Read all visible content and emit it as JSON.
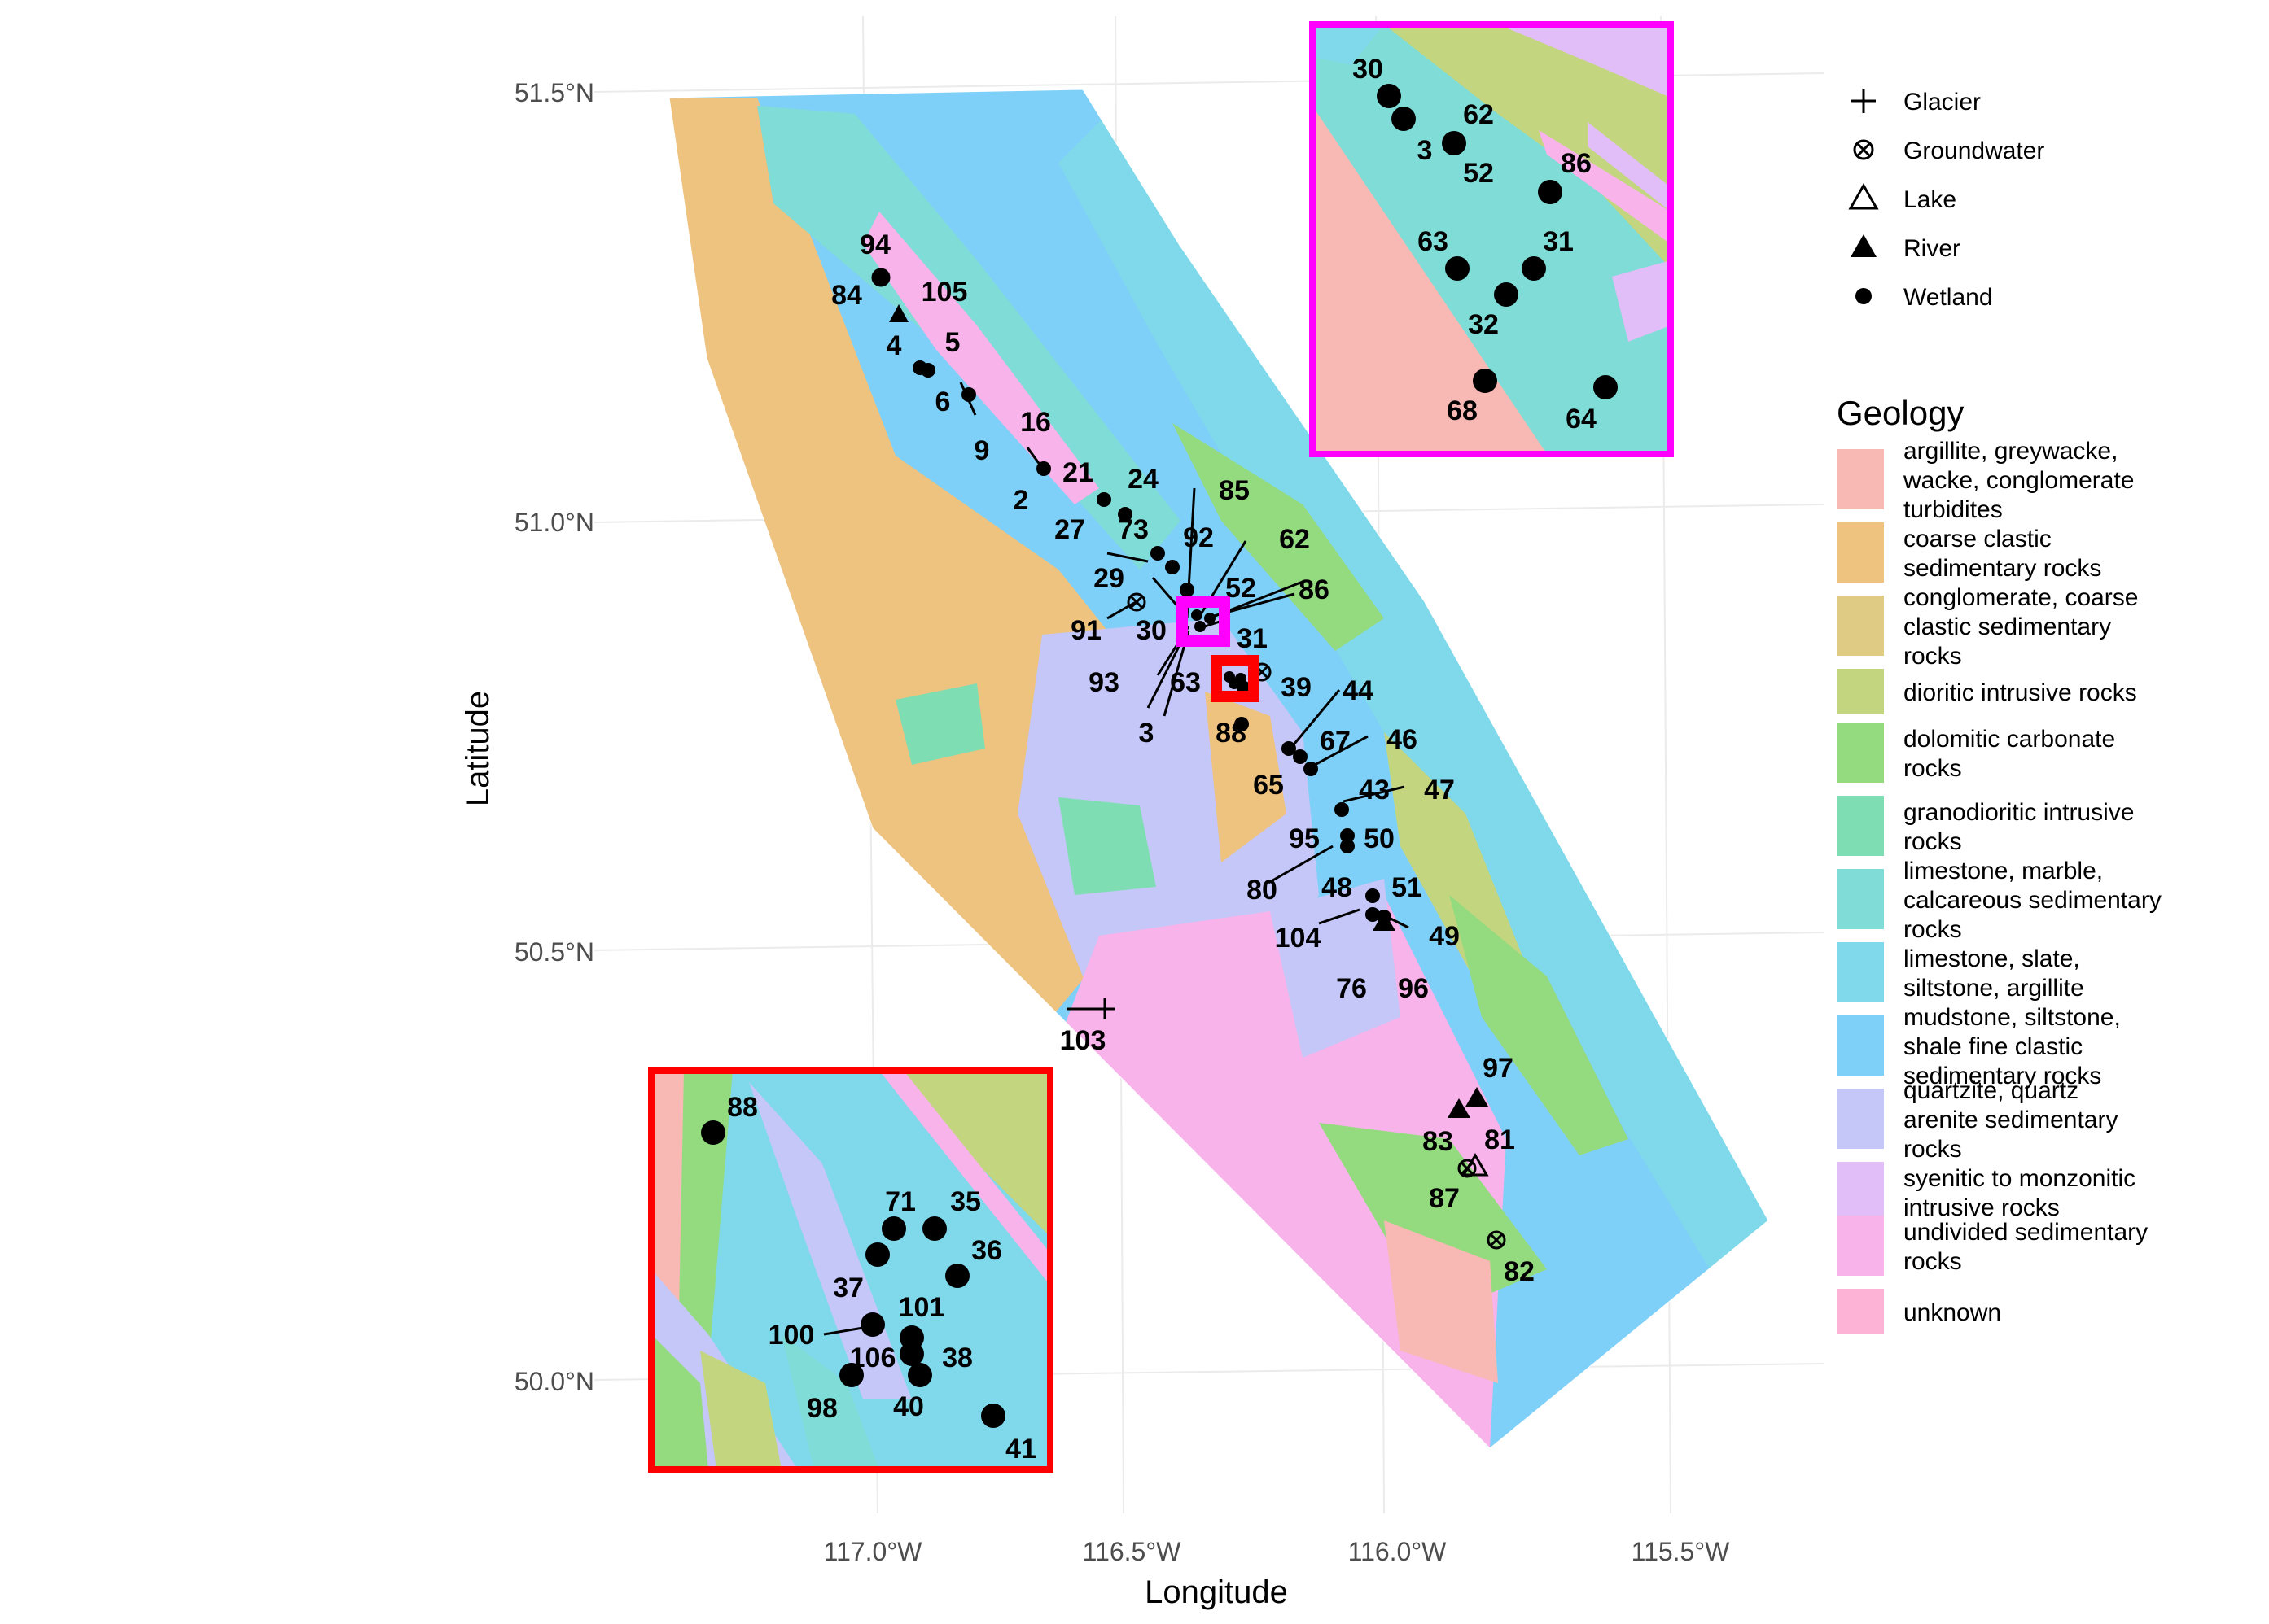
{
  "axes": {
    "x_title": "Longitude",
    "y_title": "Latitude",
    "x_ticks": [
      "117.0°W",
      "116.5°W",
      "116.0°W",
      "115.5°W"
    ],
    "y_ticks": [
      "51.5°N",
      "51.0°N",
      "50.5°N",
      "50.0°N"
    ]
  },
  "site_types": [
    {
      "label": "Glacier",
      "symbol": "plus"
    },
    {
      "label": "Groundwater",
      "symbol": "circle-cross"
    },
    {
      "label": "Lake",
      "symbol": "open-triangle"
    },
    {
      "label": "River",
      "symbol": "filled-triangle"
    },
    {
      "label": "Wetland",
      "symbol": "dot"
    }
  ],
  "geology": {
    "title": "Geology",
    "units": [
      {
        "label_lines": [
          "argillite, greywacke,",
          "wacke, conglomerate",
          "turbidites"
        ],
        "color": "#F8B9B4"
      },
      {
        "label_lines": [
          "coarse clastic",
          "sedimentary rocks"
        ],
        "color": "#EEC27F"
      },
      {
        "label_lines": [
          "conglomerate, coarse",
          "clastic sedimentary",
          "rocks"
        ],
        "color": "#DFCB84"
      },
      {
        "label_lines": [
          "dioritic intrusive rocks"
        ],
        "color": "#C3D67F"
      },
      {
        "label_lines": [
          "dolomitic carbonate",
          "rocks"
        ],
        "color": "#94DB7F"
      },
      {
        "label_lines": [
          "granodioritic intrusive",
          "rocks"
        ],
        "color": "#7FDDB4"
      },
      {
        "label_lines": [
          "limestone, marble,",
          "calcareous sedimentary",
          "rocks"
        ],
        "color": "#7FDCD6"
      },
      {
        "label_lines": [
          "limestone, slate,",
          "siltstone, argillite"
        ],
        "color": "#7FD9EA"
      },
      {
        "label_lines": [
          "mudstone, siltstone,",
          "shale fine clastic",
          "sedimentary rocks"
        ],
        "color": "#7FD0F8"
      },
      {
        "label_lines": [
          "quartzite, quartz",
          "arenite sedimentary",
          "rocks"
        ],
        "color": "#C4C7F8"
      },
      {
        "label_lines": [
          "syenitic to monzonitic",
          "intrusive rocks"
        ],
        "color": "#E1BEF8"
      },
      {
        "label_lines": [
          "undivided sedimentary",
          "rocks"
        ],
        "color": "#F8B3EA"
      },
      {
        "label_lines": [
          "unknown"
        ],
        "color": "#FDB3D6"
      }
    ]
  },
  "main_labels": [
    "94",
    "84",
    "105",
    "4",
    "5",
    "6",
    "9",
    "16",
    "21",
    "2",
    "24",
    "27",
    "73",
    "85",
    "92",
    "62",
    "29",
    "52",
    "86",
    "91",
    "30",
    "31",
    "93",
    "63",
    "39",
    "3",
    "88",
    "44",
    "67",
    "46",
    "65",
    "43",
    "47",
    "95",
    "50",
    "80",
    "48",
    "51",
    "104",
    "49",
    "76",
    "96",
    "103",
    "97",
    "83",
    "81",
    "87",
    "82"
  ],
  "inset_top_labels": [
    "30",
    "3",
    "62",
    "52",
    "86",
    "63",
    "31",
    "32",
    "68",
    "64"
  ],
  "inset_bottom_labels": [
    "88",
    "71",
    "35",
    "36",
    "37",
    "101",
    "100",
    "106",
    "38",
    "98",
    "40",
    "41"
  ],
  "inset_colors": {
    "top": "#FF00FF",
    "bottom": "#FF0000"
  }
}
